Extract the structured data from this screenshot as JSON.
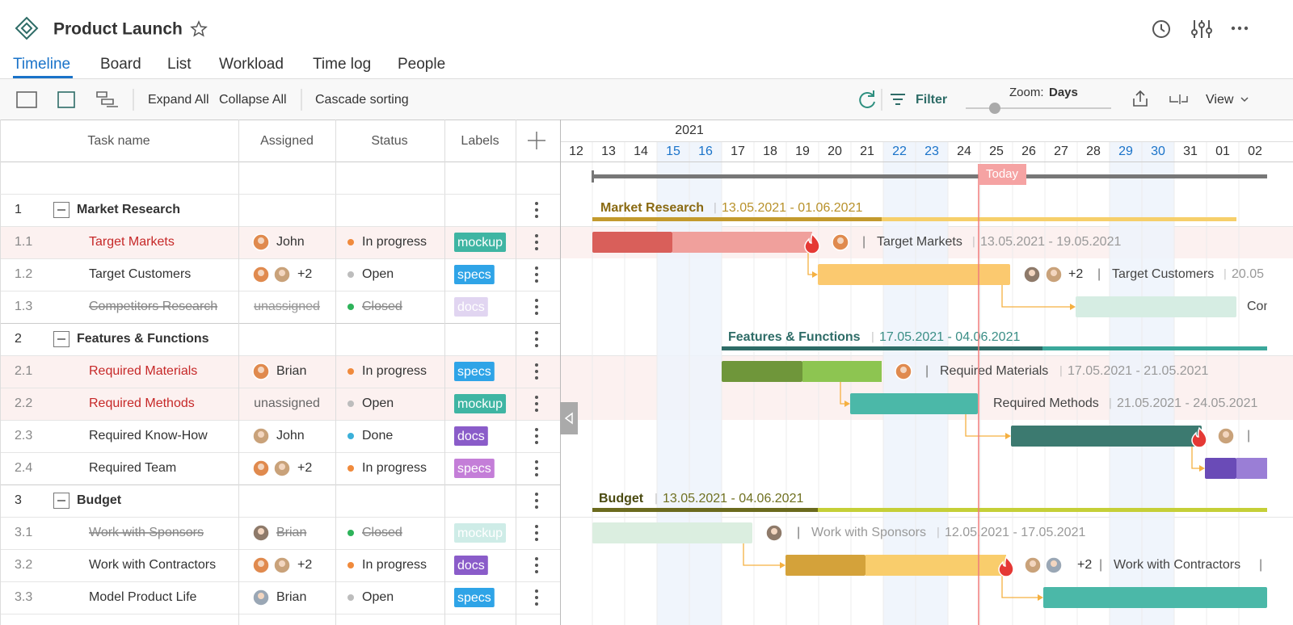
{
  "header": {
    "title": "Product Launch"
  },
  "tabs": [
    "Timeline",
    "Board",
    "List",
    "Workload",
    "Time log",
    "People"
  ],
  "toolbar": {
    "expand": "Expand All",
    "collapse": "Collapse All",
    "sorting": "Cascade sorting",
    "filter": "Filter",
    "zoom_label": "Zoom:",
    "zoom_value": "Days",
    "view": "View"
  },
  "columns": [
    "Task name",
    "Assigned",
    "Status",
    "Labels"
  ],
  "timeline": {
    "year": "2021",
    "days": [
      "12",
      "13",
      "14",
      "15",
      "16",
      "17",
      "18",
      "19",
      "20",
      "21",
      "22",
      "23",
      "24",
      "25",
      "26",
      "27",
      "28",
      "29",
      "30",
      "31",
      "01",
      "02"
    ],
    "weekend": [
      false,
      false,
      false,
      true,
      true,
      false,
      false,
      false,
      false,
      false,
      true,
      true,
      false,
      false,
      false,
      false,
      false,
      true,
      true,
      false,
      false,
      false
    ],
    "today": "Today"
  },
  "rows": [
    {
      "id": "1",
      "name": "Market Research",
      "group": true,
      "dates": "13.05.2021 - 01.06.2021"
    },
    {
      "id": "1.1",
      "name": "Target Markets",
      "assignee": "John",
      "status": "In progress",
      "status_color": "#f08a3c",
      "label": "mockup",
      "label_color": "#3fb5a3",
      "overdue": true,
      "dates": "13.05.2021 - 19.05.2021"
    },
    {
      "id": "1.2",
      "name": "Target Customers",
      "extra": "+2",
      "status": "Open",
      "status_color": "#bdbdbd",
      "label": "specs",
      "label_color": "#2fa4e7",
      "dates": "20.05"
    },
    {
      "id": "1.3",
      "name": "Competitors Research",
      "assignee": "unassigned",
      "status": "Closed",
      "status_color": "#2eb35a",
      "label": "docs",
      "label_color": "#8a5cc9",
      "closed": true
    },
    {
      "id": "2",
      "name": "Features & Functions",
      "group": true,
      "dates": "17.05.2021 - 04.06.2021"
    },
    {
      "id": "2.1",
      "name": "Required Materials",
      "assignee": "Brian",
      "status": "In progress",
      "status_color": "#f08a3c",
      "label": "specs",
      "label_color": "#2fa4e7",
      "overdue": true,
      "dates": "17.05.2021 - 21.05.2021"
    },
    {
      "id": "2.2",
      "name": "Required Methods",
      "assignee": "unassigned",
      "status": "Open",
      "status_color": "#bdbdbd",
      "label": "mockup",
      "label_color": "#3fb5a3",
      "overdue": true,
      "dates": "21.05.2021 - 24.05.2021"
    },
    {
      "id": "2.3",
      "name": "Required Know-How",
      "assignee": "John",
      "status": "Done",
      "status_color": "#3bb0d9",
      "label": "docs",
      "label_color": "#8a5cc9"
    },
    {
      "id": "2.4",
      "name": "Required Team",
      "extra": "+2",
      "status": "In progress",
      "status_color": "#f08a3c",
      "label": "specs",
      "label_color": "#c47ed8"
    },
    {
      "id": "3",
      "name": "Budget",
      "group": true,
      "dates": "13.05.2021 - 04.06.2021"
    },
    {
      "id": "3.1",
      "name": "Work with Sponsors",
      "assignee": "Brian",
      "status": "Closed",
      "status_color": "#2eb35a",
      "label": "mockup",
      "label_color": "#3fb5a3",
      "closed": true,
      "dates": "12.05.2021 - 17.05.2021"
    },
    {
      "id": "3.2",
      "name": "Work with Contractors",
      "extra": "+2",
      "status": "In progress",
      "status_color": "#f08a3c",
      "label": "docs",
      "label_color": "#8a5cc9"
    },
    {
      "id": "3.3",
      "name": "Model Product Life",
      "assignee": "Brian",
      "status": "Open",
      "status_color": "#bdbdbd",
      "label": "specs",
      "label_color": "#2fa4e7"
    }
  ]
}
